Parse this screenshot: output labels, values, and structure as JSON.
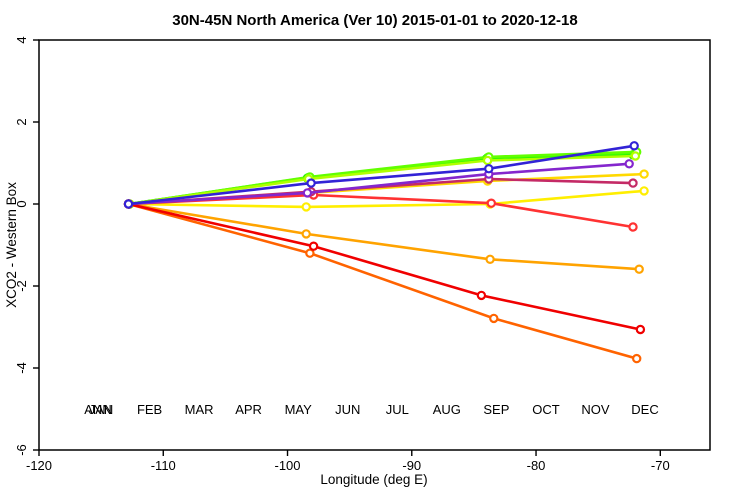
{
  "chart_data": {
    "type": "line",
    "title": "30N-45N North America (Ver 10)   2015-01-01 to 2020-12-18",
    "xlabel": "Longitude (deg E)",
    "ylabel": "XCO2 - Western Box",
    "xlim": [
      -120,
      -66
    ],
    "ylim": [
      -6,
      4
    ],
    "xticks": [
      -120,
      -110,
      -100,
      -90,
      -80,
      -70
    ],
    "yticks": [
      4,
      2,
      0,
      -2,
      -4,
      -6
    ],
    "grid": false,
    "marker": "open-circle",
    "legend_position": "inside-bottom",
    "series": [
      {
        "name": "ANN",
        "color": "#00DC00",
        "points": [
          [
            -112.8,
            0.0
          ],
          [
            -98.4,
            0.63
          ],
          [
            -84.0,
            1.1
          ],
          [
            -72.2,
            1.2
          ]
        ]
      },
      {
        "name": "JAN",
        "color": "#3CFF00",
        "points": [
          [
            -112.8,
            0.0
          ],
          [
            -98.3,
            0.65
          ],
          [
            -83.9,
            1.13
          ],
          [
            -72.0,
            1.24
          ]
        ]
      },
      {
        "name": "FEB",
        "color": "#62FF00",
        "points": [
          [
            -112.7,
            0.0
          ],
          [
            -98.2,
            0.66
          ],
          [
            -83.8,
            1.15
          ],
          [
            -71.9,
            1.27
          ]
        ]
      },
      {
        "name": "MAR",
        "color": "#B0FF00",
        "points": [
          [
            -112.7,
            0.0
          ],
          [
            -98.3,
            0.61
          ],
          [
            -83.9,
            1.06
          ],
          [
            -72.0,
            1.17
          ]
        ]
      },
      {
        "name": "APR",
        "color": "#FFD900",
        "points": [
          [
            -112.8,
            0.0
          ],
          [
            -98.3,
            0.27
          ],
          [
            -83.9,
            0.56
          ],
          [
            -71.3,
            0.73
          ]
        ]
      },
      {
        "name": "MAY",
        "color": "#FFEE00",
        "points": [
          [
            -112.8,
            0.0
          ],
          [
            -98.5,
            -0.07
          ],
          [
            -83.7,
            0.0
          ],
          [
            -71.3,
            0.32
          ]
        ]
      },
      {
        "name": "JUN",
        "color": "#FFA300",
        "points": [
          [
            -112.8,
            0.0
          ],
          [
            -98.5,
            -0.73
          ],
          [
            -83.7,
            -1.35
          ],
          [
            -71.7,
            -1.59
          ]
        ]
      },
      {
        "name": "JUL",
        "color": "#FF6300",
        "points": [
          [
            -112.8,
            0.0
          ],
          [
            -98.2,
            -1.2
          ],
          [
            -83.4,
            -2.79
          ],
          [
            -71.9,
            -3.77
          ]
        ]
      },
      {
        "name": "AUG",
        "color": "#FF3232",
        "points": [
          [
            -112.8,
            0.0
          ],
          [
            -97.9,
            0.22
          ],
          [
            -83.6,
            0.02
          ],
          [
            -72.2,
            -0.56
          ]
        ]
      },
      {
        "name": "SEP",
        "color": "#F00000",
        "points": [
          [
            -112.8,
            0.0
          ],
          [
            -97.9,
            -1.03
          ],
          [
            -84.4,
            -2.23
          ],
          [
            -71.6,
            -3.06
          ]
        ]
      },
      {
        "name": "OCT",
        "color": "#C42A66",
        "points": [
          [
            -112.8,
            0.0
          ],
          [
            -98.1,
            0.3
          ],
          [
            -83.8,
            0.61
          ],
          [
            -72.2,
            0.51
          ]
        ]
      },
      {
        "name": "NOV",
        "color": "#8426CD",
        "points": [
          [
            -112.8,
            0.0
          ],
          [
            -98.4,
            0.27
          ],
          [
            -83.8,
            0.73
          ],
          [
            -72.5,
            0.98
          ]
        ]
      },
      {
        "name": "DEC",
        "color": "#3223D6",
        "points": [
          [
            -112.8,
            0.0
          ],
          [
            -98.1,
            0.51
          ],
          [
            -83.8,
            0.86
          ],
          [
            -72.1,
            1.42
          ]
        ]
      }
    ],
    "legend": [
      {
        "label": "JAN",
        "color": "#3CFF00",
        "slot": 0,
        "dx": 1
      },
      {
        "label": "ANN",
        "color": "#00DC00",
        "slot": 0,
        "dx": -2
      },
      {
        "label": "FEB",
        "color": "#62FF00",
        "slot": 1,
        "dx": 0
      },
      {
        "label": "MAR",
        "color": "#B0FF00",
        "slot": 2,
        "dx": 0
      },
      {
        "label": "APR",
        "color": "#FFD900",
        "slot": 3,
        "dx": 0
      },
      {
        "label": "MAY",
        "color": "#FFEE00",
        "slot": 4,
        "dx": 0
      },
      {
        "label": "JUN",
        "color": "#FFA300",
        "slot": 5,
        "dx": 0
      },
      {
        "label": "JUL",
        "color": "#FF6300",
        "slot": 6,
        "dx": 0
      },
      {
        "label": "AUG",
        "color": "#FF3232",
        "slot": 7,
        "dx": 0
      },
      {
        "label": "SEP",
        "color": "#F00000",
        "slot": 8,
        "dx": 0
      },
      {
        "label": "OCT",
        "color": "#C42A66",
        "slot": 9,
        "dx": 0
      },
      {
        "label": "NOV",
        "color": "#8426CD",
        "slot": 10,
        "dx": 0
      },
      {
        "label": "DEC",
        "color": "#3223D6",
        "slot": 11,
        "dx": 0
      }
    ]
  }
}
